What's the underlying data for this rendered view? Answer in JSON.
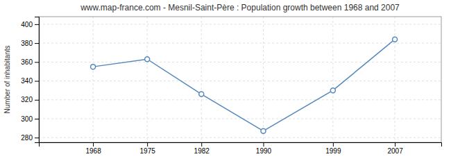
{
  "chart_data": {
    "type": "line",
    "title": "www.map-france.com - Mesnil-Saint-Père : Population growth between 1968 and 2007",
    "y_label": "Number of inhabitants",
    "x": [
      1968,
      1975,
      1982,
      1990,
      1999,
      2007
    ],
    "values": [
      355,
      363,
      326,
      287,
      330,
      384
    ],
    "color": "#5588bb",
    "marker": "circle",
    "xlim": [
      1961,
      2013
    ],
    "xticks": [
      1968,
      1975,
      1982,
      1990,
      1999,
      2007
    ],
    "ylim": [
      275,
      408
    ],
    "yticks": [
      280,
      300,
      320,
      340,
      360,
      380,
      400
    ],
    "grid": true
  }
}
